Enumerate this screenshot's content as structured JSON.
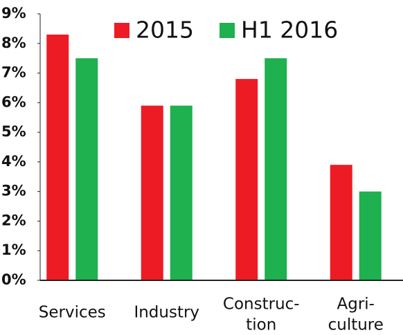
{
  "chart_data": {
    "type": "bar",
    "categories": [
      [
        "Services"
      ],
      [
        "Industry"
      ],
      [
        "Construc-",
        "tion"
      ],
      [
        "Agri-",
        "culture"
      ]
    ],
    "series": [
      {
        "name": "2015",
        "color": "#ed1c24",
        "values": [
          8.3,
          5.9,
          6.8,
          3.9
        ]
      },
      {
        "name": "H1 2016",
        "color": "#1fb04f",
        "values": [
          7.5,
          5.9,
          7.5,
          3.0
        ]
      }
    ],
    "ylim": [
      0,
      9
    ],
    "yticks": [
      {
        "value": 0,
        "label": "0%"
      },
      {
        "value": 1,
        "label": "1%"
      },
      {
        "value": 2,
        "label": "2%"
      },
      {
        "value": 3,
        "label": "3%"
      },
      {
        "value": 4,
        "label": "4%"
      },
      {
        "value": 5,
        "label": "5%"
      },
      {
        "value": 6,
        "label": "6%"
      },
      {
        "value": 7,
        "label": "7%"
      },
      {
        "value": 8,
        "label": "8%"
      },
      {
        "value": 9,
        "label": "9%"
      }
    ],
    "legend": "top-right"
  }
}
